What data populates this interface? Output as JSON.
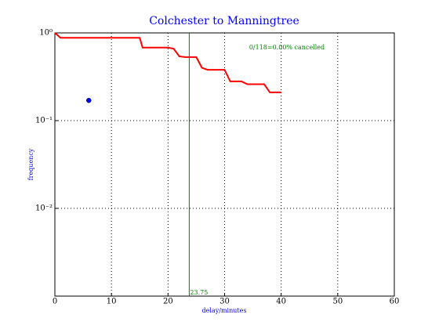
{
  "chart_data": {
    "type": "line",
    "title": "Colchester to Manningtree",
    "x_label": "delay/minutes",
    "y_label": "frequency",
    "text_color": "#0000ff",
    "xlim": [
      0,
      60
    ],
    "xticks": [
      0,
      10,
      20,
      30,
      40,
      50,
      60
    ],
    "ylim": [
      0.001,
      1
    ],
    "yticks": [
      {
        "value": 0.01,
        "label": "10⁻²"
      },
      {
        "value": 0.1,
        "label": "10⁻¹"
      },
      {
        "value": 1,
        "label": "10⁰"
      }
    ],
    "y_scale": "log",
    "grid": true,
    "series": [
      {
        "color": "#ff0000",
        "style": "line",
        "x": [
          0,
          1,
          15,
          15.5,
          20,
          21,
          22,
          23,
          25,
          26,
          27,
          30,
          31,
          33,
          34,
          37,
          38,
          40
        ],
        "values": [
          1,
          0.88,
          0.88,
          0.68,
          0.68,
          0.66,
          0.54,
          0.53,
          0.53,
          0.4,
          0.38,
          0.38,
          0.28,
          0.28,
          0.26,
          0.26,
          0.21,
          0.21
        ]
      },
      {
        "color": "#0000ff",
        "style": "marker",
        "x": [
          6
        ],
        "values": [
          0.17
        ]
      }
    ],
    "vline": {
      "value": 23.75,
      "color": "#008000"
    },
    "annotation": {
      "text": "0/118=0.00% cancelled",
      "color": "#008000"
    }
  }
}
